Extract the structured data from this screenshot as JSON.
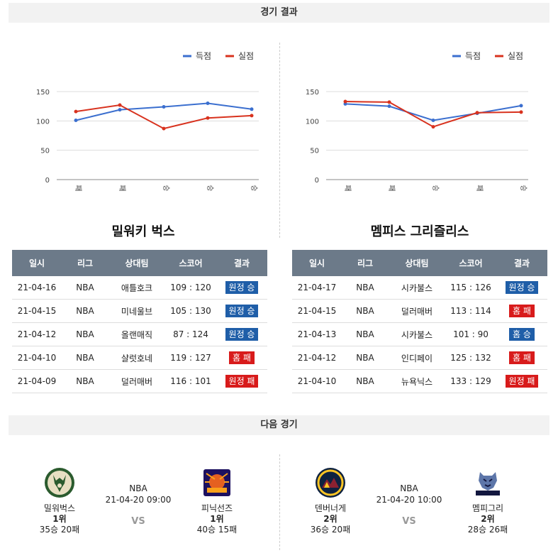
{
  "header": {
    "results_title": "경기 결과",
    "next_title": "다음 경기"
  },
  "legend": {
    "scored": "득점",
    "conceded": "실점"
  },
  "colors": {
    "scored": "#3b6fcf",
    "conceded": "#d8321e",
    "win_badge": "#1f5ea8",
    "loss_badge": "#d81b1b"
  },
  "table_headers": [
    "일시",
    "리그",
    "상대팀",
    "스코어",
    "결과"
  ],
  "chart_data": [
    {
      "type": "line",
      "categories": [
        "패",
        "패",
        "승",
        "승",
        "승"
      ],
      "yticks": [
        0,
        50,
        100,
        150
      ],
      "ylim": [
        0,
        150
      ],
      "grid": true,
      "legend_position": "top-right",
      "series": [
        {
          "name": "득점",
          "values": [
            101,
            119,
            124,
            130,
            120
          ]
        },
        {
          "name": "실점",
          "values": [
            116,
            127,
            87,
            105,
            109
          ]
        }
      ]
    },
    {
      "type": "line",
      "categories": [
        "패",
        "패",
        "승",
        "패",
        "승"
      ],
      "yticks": [
        0,
        50,
        100,
        150
      ],
      "ylim": [
        0,
        150
      ],
      "grid": true,
      "legend_position": "top-right",
      "series": [
        {
          "name": "득점",
          "values": [
            129,
            125,
            101,
            113,
            126
          ]
        },
        {
          "name": "실점",
          "values": [
            133,
            132,
            90,
            114,
            115
          ]
        }
      ]
    }
  ],
  "teams": [
    {
      "name": "밀워키 벅스",
      "rows": [
        {
          "date": "21-04-16",
          "league": "NBA",
          "opponent": "애틀호크",
          "score": "109 : 120",
          "result": "원정 승",
          "win": true
        },
        {
          "date": "21-04-15",
          "league": "NBA",
          "opponent": "미네울브",
          "score": "105 : 130",
          "result": "원정 승",
          "win": true
        },
        {
          "date": "21-04-12",
          "league": "NBA",
          "opponent": "올랜매직",
          "score": "87 : 124",
          "result": "원정 승",
          "win": true
        },
        {
          "date": "21-04-10",
          "league": "NBA",
          "opponent": "샬럿호네",
          "score": "119 : 127",
          "result": "홈 패",
          "win": false
        },
        {
          "date": "21-04-09",
          "league": "NBA",
          "opponent": "덜러매버",
          "score": "116 : 101",
          "result": "원정 패",
          "win": false
        }
      ]
    },
    {
      "name": "멤피스 그리즐리스",
      "rows": [
        {
          "date": "21-04-17",
          "league": "NBA",
          "opponent": "시카불스",
          "score": "115 : 126",
          "result": "원정 승",
          "win": true
        },
        {
          "date": "21-04-15",
          "league": "NBA",
          "opponent": "덜러매버",
          "score": "113 : 114",
          "result": "홈 패",
          "win": false
        },
        {
          "date": "21-04-13",
          "league": "NBA",
          "opponent": "시카불스",
          "score": "101 : 90",
          "result": "홈 승",
          "win": true
        },
        {
          "date": "21-04-12",
          "league": "NBA",
          "opponent": "인디페이",
          "score": "125 : 132",
          "result": "홈 패",
          "win": false
        },
        {
          "date": "21-04-10",
          "league": "NBA",
          "opponent": "뉴욕닉스",
          "score": "133 : 129",
          "result": "원정 패",
          "win": false
        }
      ]
    }
  ],
  "next_games": [
    {
      "league": "NBA",
      "datetime": "21-04-20 09:00",
      "vs": "VS",
      "home": {
        "name": "밀워벅스",
        "rank": "1위",
        "record": "35승 20패",
        "logo": "bucks-logo"
      },
      "away": {
        "name": "피닉선즈",
        "rank": "1위",
        "record": "40승 15패",
        "logo": "suns-logo"
      }
    },
    {
      "league": "NBA",
      "datetime": "21-04-20 10:00",
      "vs": "VS",
      "home": {
        "name": "덴버너게",
        "rank": "2위",
        "record": "36승 20패",
        "logo": "nuggets-logo"
      },
      "away": {
        "name": "멤피그리",
        "rank": "2위",
        "record": "28승 26패",
        "logo": "grizzlies-logo"
      }
    }
  ]
}
